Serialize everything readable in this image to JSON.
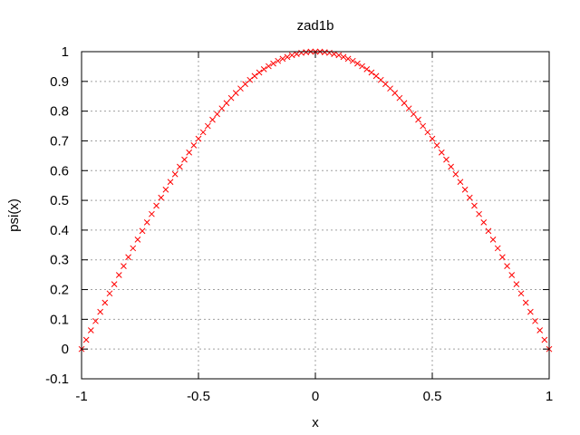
{
  "chart_data": {
    "type": "scatter",
    "title": "zad1b",
    "xlabel": "x",
    "ylabel": "psi(x)",
    "xlim": [
      -1,
      1
    ],
    "ylim": [
      -0.1,
      1
    ],
    "xticks": [
      -1,
      -0.5,
      0,
      0.5,
      1
    ],
    "xtick_labels": [
      "-1",
      "-0.5",
      "0",
      "0.5",
      "1"
    ],
    "yticks": [
      -0.1,
      0,
      0.1,
      0.2,
      0.3,
      0.4,
      0.5,
      0.6,
      0.7,
      0.8,
      0.9,
      1
    ],
    "ytick_labels": [
      "-0.1",
      "0",
      "0.1",
      "0.2",
      "0.3",
      "0.4",
      "0.5",
      "0.6",
      "0.7",
      "0.8",
      "0.9",
      "1"
    ],
    "grid": true,
    "marker": "x-cross",
    "series": [
      {
        "color": "#ff0000",
        "x": [
          -1,
          -0.98,
          -0.96,
          -0.94,
          -0.92,
          -0.9,
          -0.88,
          -0.86,
          -0.84,
          -0.82,
          -0.8,
          -0.78,
          -0.76,
          -0.74,
          -0.72,
          -0.7,
          -0.68,
          -0.66,
          -0.64,
          -0.62,
          -0.6,
          -0.58,
          -0.56,
          -0.54,
          -0.52,
          -0.5,
          -0.48,
          -0.46,
          -0.44,
          -0.42,
          -0.4,
          -0.38,
          -0.36,
          -0.34,
          -0.32,
          -0.3,
          -0.28,
          -0.26,
          -0.24,
          -0.22,
          -0.2,
          -0.18,
          -0.16,
          -0.14,
          -0.12,
          -0.1,
          -0.08,
          -0.06,
          -0.04,
          -0.02,
          0,
          0.02,
          0.04,
          0.06,
          0.08,
          0.1,
          0.12,
          0.14,
          0.16,
          0.18,
          0.2,
          0.22,
          0.24,
          0.26,
          0.28,
          0.3,
          0.32,
          0.34,
          0.36,
          0.38,
          0.4,
          0.42,
          0.44,
          0.46,
          0.48,
          0.5,
          0.52,
          0.54,
          0.56,
          0.58,
          0.6,
          0.62,
          0.64,
          0.66,
          0.68,
          0.7,
          0.72,
          0.74,
          0.76,
          0.78,
          0.8,
          0.82,
          0.84,
          0.86,
          0.88,
          0.9,
          0.92,
          0.94,
          0.96,
          0.98,
          1
        ],
        "y": [
          0,
          0.031,
          0.063,
          0.094,
          0.125,
          0.156,
          0.187,
          0.218,
          0.249,
          0.279,
          0.309,
          0.339,
          0.368,
          0.397,
          0.426,
          0.454,
          0.482,
          0.509,
          0.536,
          0.562,
          0.588,
          0.613,
          0.637,
          0.661,
          0.685,
          0.707,
          0.729,
          0.75,
          0.771,
          0.79,
          0.809,
          0.827,
          0.844,
          0.861,
          0.876,
          0.891,
          0.905,
          0.918,
          0.93,
          0.941,
          0.951,
          0.96,
          0.969,
          0.976,
          0.982,
          0.988,
          0.992,
          0.996,
          0.998,
          1.0,
          1.0,
          1.0,
          0.998,
          0.996,
          0.992,
          0.988,
          0.982,
          0.976,
          0.969,
          0.96,
          0.951,
          0.941,
          0.93,
          0.918,
          0.905,
          0.891,
          0.876,
          0.861,
          0.844,
          0.827,
          0.809,
          0.79,
          0.771,
          0.75,
          0.729,
          0.707,
          0.685,
          0.661,
          0.637,
          0.613,
          0.588,
          0.562,
          0.536,
          0.509,
          0.482,
          0.454,
          0.426,
          0.397,
          0.368,
          0.339,
          0.309,
          0.279,
          0.249,
          0.218,
          0.187,
          0.156,
          0.125,
          0.094,
          0.063,
          0.031,
          0
        ]
      }
    ]
  }
}
